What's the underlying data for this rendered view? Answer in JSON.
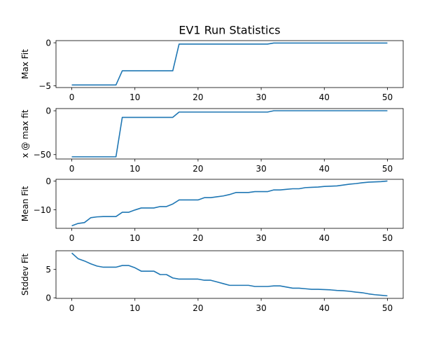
{
  "figure": {
    "title": "EV1 Run Statistics",
    "line_color": "#1f77b4"
  },
  "chart_data": [
    {
      "type": "line",
      "ylabel": "Max Fit",
      "xlim": [
        -2.5,
        52.5
      ],
      "ylim": [
        -5.2,
        0.25
      ],
      "xticks": [
        0,
        10,
        20,
        30,
        40,
        50
      ],
      "yticks": [
        0,
        -5
      ],
      "ytick_labels": [
        "0",
        "−5"
      ],
      "grid": false,
      "x": [
        0,
        1,
        2,
        3,
        4,
        5,
        6,
        7,
        8,
        9,
        10,
        11,
        12,
        13,
        14,
        15,
        16,
        17,
        18,
        19,
        20,
        21,
        22,
        23,
        24,
        25,
        26,
        27,
        28,
        29,
        30,
        31,
        32,
        33,
        34,
        35,
        36,
        37,
        38,
        39,
        40,
        41,
        42,
        43,
        44,
        45,
        46,
        47,
        48,
        49,
        50
      ],
      "y": [
        -4.9,
        -4.9,
        -4.9,
        -4.9,
        -4.9,
        -4.9,
        -4.9,
        -4.9,
        -3.25,
        -3.25,
        -3.25,
        -3.25,
        -3.25,
        -3.25,
        -3.25,
        -3.25,
        -3.25,
        -0.15,
        -0.15,
        -0.15,
        -0.15,
        -0.15,
        -0.15,
        -0.15,
        -0.15,
        -0.15,
        -0.15,
        -0.15,
        -0.15,
        -0.15,
        -0.15,
        -0.15,
        -0.03,
        -0.03,
        -0.03,
        -0.03,
        -0.03,
        -0.03,
        -0.03,
        -0.03,
        -0.03,
        -0.03,
        -0.03,
        -0.03,
        -0.03,
        -0.03,
        -0.03,
        -0.03,
        -0.03,
        -0.03,
        -0.03
      ]
    },
    {
      "type": "line",
      "ylabel": "x @ max fit",
      "xlim": [
        -2.5,
        52.5
      ],
      "ylim": [
        -55,
        2.5
      ],
      "xticks": [
        0,
        10,
        20,
        30,
        40,
        50
      ],
      "yticks": [
        0,
        -50
      ],
      "ytick_labels": [
        "0",
        "−50"
      ],
      "grid": false,
      "x": [
        0,
        1,
        2,
        3,
        4,
        5,
        6,
        7,
        8,
        9,
        10,
        11,
        12,
        13,
        14,
        15,
        16,
        17,
        18,
        19,
        20,
        21,
        22,
        23,
        24,
        25,
        26,
        27,
        28,
        29,
        30,
        31,
        32,
        33,
        34,
        35,
        36,
        37,
        38,
        39,
        40,
        41,
        42,
        43,
        44,
        45,
        46,
        47,
        48,
        49,
        50
      ],
      "y": [
        -52.5,
        -52.5,
        -52.5,
        -52.5,
        -52.5,
        -52.5,
        -52.5,
        -52.5,
        -7.5,
        -7.5,
        -7.5,
        -7.5,
        -7.5,
        -7.5,
        -7.5,
        -7.5,
        -7.5,
        -1.5,
        -1.5,
        -1.5,
        -1.5,
        -1.5,
        -1.5,
        -1.5,
        -1.5,
        -1.5,
        -1.5,
        -1.5,
        -1.5,
        -1.5,
        -1.5,
        -1.5,
        0,
        0,
        0,
        0,
        0,
        0,
        0,
        0,
        0,
        0,
        0,
        0,
        0,
        0,
        0,
        0,
        0,
        0,
        0
      ]
    },
    {
      "type": "line",
      "ylabel": "Mean Fit",
      "xlim": [
        -2.5,
        52.5
      ],
      "ylim": [
        -16.5,
        0.6
      ],
      "xticks": [
        0,
        10,
        20,
        30,
        40,
        50
      ],
      "yticks": [
        0,
        -10
      ],
      "ytick_labels": [
        "0",
        "−10"
      ],
      "grid": false,
      "x": [
        0,
        1,
        2,
        3,
        4,
        5,
        6,
        7,
        8,
        9,
        10,
        11,
        12,
        13,
        14,
        15,
        16,
        17,
        18,
        19,
        20,
        21,
        22,
        23,
        24,
        25,
        26,
        27,
        28,
        29,
        30,
        31,
        32,
        33,
        34,
        35,
        36,
        37,
        38,
        39,
        40,
        41,
        42,
        43,
        44,
        45,
        46,
        47,
        48,
        49,
        50
      ],
      "y": [
        -15.6,
        -14.8,
        -14.5,
        -12.8,
        -12.5,
        -12.4,
        -12.4,
        -12.4,
        -10.9,
        -10.9,
        -10.1,
        -9.4,
        -9.4,
        -9.4,
        -8.9,
        -8.9,
        -8.0,
        -6.6,
        -6.6,
        -6.6,
        -6.6,
        -5.8,
        -5.8,
        -5.5,
        -5.2,
        -4.7,
        -4.0,
        -4.0,
        -4.0,
        -3.7,
        -3.7,
        -3.7,
        -3.1,
        -3.1,
        -2.9,
        -2.7,
        -2.7,
        -2.3,
        -2.2,
        -2.1,
        -1.9,
        -1.8,
        -1.7,
        -1.4,
        -1.1,
        -0.9,
        -0.6,
        -0.4,
        -0.3,
        -0.2,
        0.0
      ]
    },
    {
      "type": "line",
      "ylabel": "Stddev Fit",
      "xlim": [
        -2.5,
        52.5
      ],
      "ylim": [
        -0.1,
        8.3
      ],
      "xticks": [
        0,
        10,
        20,
        30,
        40,
        50
      ],
      "yticks": [
        0,
        5
      ],
      "ytick_labels": [
        "0",
        "5"
      ],
      "grid": false,
      "x": [
        0,
        1,
        2,
        3,
        4,
        5,
        6,
        7,
        8,
        9,
        10,
        11,
        12,
        13,
        14,
        15,
        16,
        17,
        18,
        19,
        20,
        21,
        22,
        23,
        24,
        25,
        26,
        27,
        28,
        29,
        30,
        31,
        32,
        33,
        34,
        35,
        36,
        37,
        38,
        39,
        40,
        41,
        42,
        43,
        44,
        45,
        46,
        47,
        48,
        49,
        50
      ],
      "y": [
        7.9,
        6.9,
        6.5,
        6.0,
        5.6,
        5.4,
        5.4,
        5.4,
        5.7,
        5.7,
        5.3,
        4.7,
        4.7,
        4.7,
        4.1,
        4.1,
        3.5,
        3.3,
        3.3,
        3.3,
        3.3,
        3.1,
        3.1,
        2.8,
        2.5,
        2.2,
        2.2,
        2.2,
        2.2,
        2.0,
        2.0,
        2.0,
        2.1,
        2.1,
        1.9,
        1.7,
        1.7,
        1.6,
        1.5,
        1.5,
        1.45,
        1.4,
        1.3,
        1.25,
        1.15,
        1.0,
        0.9,
        0.7,
        0.55,
        0.45,
        0.35
      ]
    }
  ]
}
